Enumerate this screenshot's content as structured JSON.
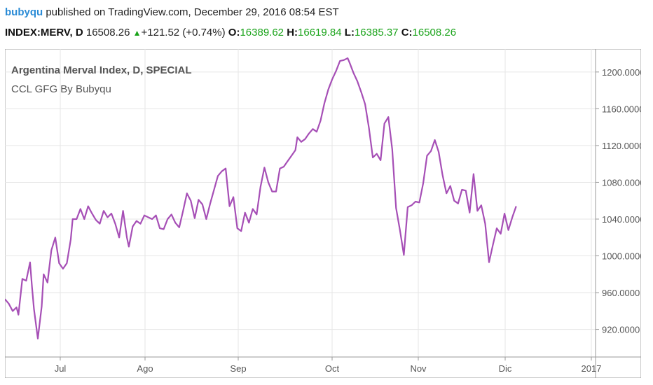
{
  "header": {
    "author": "bubyqu",
    "published_text": "published on TradingView.com, December 29, 2016 08:54 EST",
    "symbol": "INDEX:MERV, D",
    "last": "16508.26",
    "change": "+121.52 (+0.74%)",
    "open_label": "O:",
    "open_value": "16389.62",
    "high_label": "H:",
    "high_value": "16619.84",
    "low_label": "L:",
    "low_value": "16385.37",
    "close_label": "C:",
    "close_value": "16508.26"
  },
  "colors": {
    "series": "#a64fb6",
    "accent_up": "#1aa31a",
    "author": "#2a8bd6",
    "grid": "#e6e6e6"
  },
  "chart_data": {
    "type": "line",
    "title": "Argentina Merval Index, D, SPECIAL",
    "subtitle": "CCL GFG By Bubyqu",
    "x_ticks": [
      "Jul",
      "Ago",
      "Sep",
      "Oct",
      "Nov",
      "Dic",
      "2017"
    ],
    "y_ticks": [
      "920.0000",
      "960.0000",
      "1000.0000",
      "1040.0000",
      "1080.0000",
      "1120.0000",
      "1160.0000",
      "1200.0000"
    ],
    "ylim": [
      890,
      1225
    ],
    "y_axis_side": "right",
    "grid": true,
    "x_scale_note": "trading-day index 0..160",
    "series": [
      {
        "values": [
          [
            0,
            953
          ],
          [
            2,
            948
          ],
          [
            4,
            940
          ],
          [
            6,
            944
          ],
          [
            7,
            936
          ],
          [
            9,
            975
          ],
          [
            11,
            973
          ],
          [
            13,
            993
          ],
          [
            14,
            966
          ],
          [
            15,
            942
          ],
          [
            17,
            910
          ],
          [
            19,
            945
          ],
          [
            20,
            980
          ],
          [
            22,
            971
          ],
          [
            24,
            1006
          ],
          [
            26,
            1020
          ],
          [
            28,
            992
          ],
          [
            30,
            986
          ],
          [
            32,
            992
          ],
          [
            34,
            1018
          ],
          [
            35,
            1040
          ],
          [
            37,
            1040
          ],
          [
            39,
            1051
          ],
          [
            41,
            1040
          ],
          [
            43,
            1054
          ],
          [
            45,
            1046
          ],
          [
            47,
            1039
          ],
          [
            49,
            1035
          ],
          [
            51,
            1049
          ],
          [
            53,
            1042
          ],
          [
            55,
            1046
          ],
          [
            57,
            1035
          ],
          [
            59,
            1020
          ],
          [
            61,
            1049
          ],
          [
            63,
            1020
          ],
          [
            64,
            1010
          ],
          [
            66,
            1032
          ],
          [
            68,
            1038
          ],
          [
            70,
            1035
          ],
          [
            72,
            1044
          ],
          [
            74,
            1042
          ],
          [
            76,
            1040
          ],
          [
            78,
            1044
          ],
          [
            80,
            1030
          ],
          [
            82,
            1029
          ],
          [
            84,
            1040
          ],
          [
            86,
            1045
          ],
          [
            88,
            1036
          ],
          [
            90,
            1031
          ],
          [
            92,
            1049
          ],
          [
            94,
            1068
          ],
          [
            96,
            1060
          ],
          [
            98,
            1041
          ],
          [
            100,
            1061
          ],
          [
            102,
            1056
          ],
          [
            104,
            1040
          ],
          [
            106,
            1057
          ],
          [
            108,
            1072
          ],
          [
            110,
            1087
          ],
          [
            112,
            1092
          ],
          [
            114,
            1095
          ],
          [
            116,
            1054
          ],
          [
            118,
            1064
          ],
          [
            120,
            1030
          ],
          [
            122,
            1027
          ],
          [
            124,
            1047
          ],
          [
            126,
            1036
          ],
          [
            128,
            1051
          ],
          [
            130,
            1045
          ],
          [
            132,
            1075
          ],
          [
            134,
            1096
          ],
          [
            136,
            1080
          ],
          [
            138,
            1070
          ],
          [
            140,
            1070
          ],
          [
            142,
            1095
          ],
          [
            144,
            1097
          ],
          [
            146,
            1103
          ],
          [
            148,
            1109
          ],
          [
            150,
            1115
          ],
          [
            151,
            1129
          ],
          [
            153,
            1124
          ],
          [
            155,
            1127
          ],
          [
            157,
            1133
          ],
          [
            159,
            1138
          ],
          [
            161,
            1135
          ],
          [
            163,
            1147
          ],
          [
            165,
            1166
          ],
          [
            167,
            1181
          ],
          [
            169,
            1192
          ],
          [
            171,
            1201
          ],
          [
            173,
            1212
          ],
          [
            175,
            1213
          ],
          [
            177,
            1215
          ],
          [
            178,
            1210
          ],
          [
            180,
            1199
          ],
          [
            182,
            1190
          ],
          [
            184,
            1178
          ],
          [
            186,
            1165
          ],
          [
            188,
            1139
          ],
          [
            190,
            1107
          ],
          [
            192,
            1111
          ],
          [
            194,
            1104
          ],
          [
            196,
            1144
          ],
          [
            198,
            1151
          ],
          [
            200,
            1116
          ],
          [
            202,
            1052
          ],
          [
            204,
            1028
          ],
          [
            206,
            1001
          ],
          [
            208,
            1053
          ],
          [
            210,
            1055
          ],
          [
            212,
            1059
          ],
          [
            214,
            1058
          ],
          [
            216,
            1079
          ],
          [
            218,
            1109
          ],
          [
            220,
            1114
          ],
          [
            222,
            1126
          ],
          [
            224,
            1113
          ],
          [
            226,
            1088
          ],
          [
            228,
            1068
          ],
          [
            230,
            1076
          ],
          [
            232,
            1060
          ],
          [
            234,
            1057
          ],
          [
            236,
            1072
          ],
          [
            238,
            1071
          ],
          [
            240,
            1047
          ],
          [
            242,
            1089
          ],
          [
            244,
            1049
          ],
          [
            246,
            1055
          ],
          [
            248,
            1035
          ],
          [
            250,
            993
          ],
          [
            252,
            1012
          ],
          [
            254,
            1030
          ],
          [
            256,
            1024
          ],
          [
            258,
            1046
          ],
          [
            260,
            1028
          ],
          [
            262,
            1042
          ],
          [
            264,
            1054
          ]
        ]
      }
    ]
  }
}
